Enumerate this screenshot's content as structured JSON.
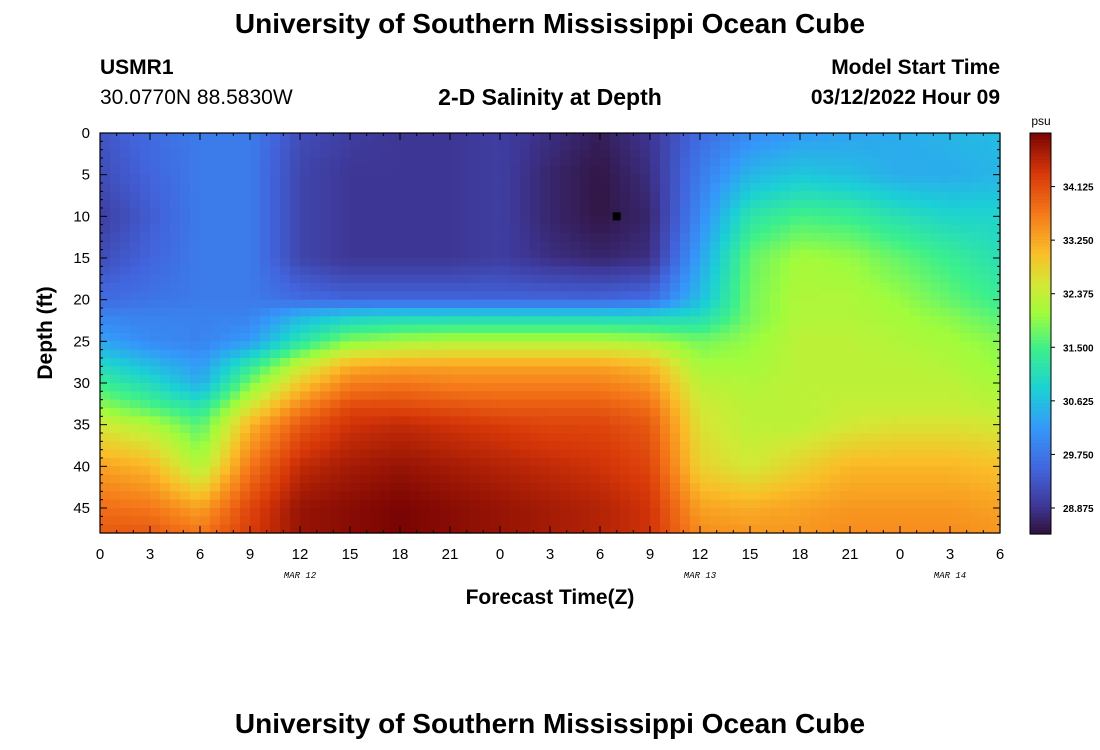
{
  "header": {
    "title": "University of Southern Mississippi Ocean Cube",
    "station": "USMR1",
    "coords": "30.0770N  88.5830W",
    "subtitle": "2-D Salinity at Depth",
    "model_start_label": "Model Start Time",
    "model_start_value": "03/12/2022 Hour 09"
  },
  "footer": {
    "title": "University of Southern Mississippi Ocean Cube"
  },
  "chart_data": {
    "type": "heatmap",
    "title": "2-D Salinity at Depth",
    "xlabel": "Forecast Time(Z)",
    "ylabel": "Depth (ft)",
    "x_unit": "forecast hours from 00Z MAR 12",
    "xlim": [
      0,
      54
    ],
    "ylim": [
      0,
      48
    ],
    "y_inverted": true,
    "x_tick_labels": [
      "0",
      "3",
      "6",
      "9",
      "12",
      "15",
      "18",
      "21",
      "0",
      "3",
      "6",
      "9",
      "12",
      "15",
      "18",
      "21",
      "0",
      "3",
      "6"
    ],
    "date_labels": [
      {
        "at_hour": 12,
        "text": "MAR 12"
      },
      {
        "at_hour": 36,
        "text": "MAR 13"
      },
      {
        "at_hour": 51,
        "text": "MAR 14"
      }
    ],
    "y_tick_labels": [
      "0",
      "5",
      "10",
      "15",
      "20",
      "25",
      "30",
      "35",
      "40",
      "45"
    ],
    "y_ticks": [
      0,
      5,
      10,
      15,
      20,
      25,
      30,
      35,
      40,
      45
    ],
    "colorbar": {
      "unit": "psu",
      "min": 28.45,
      "max": 35.0,
      "tick_labels": [
        "34.125",
        "33.250",
        "32.375",
        "31.500",
        "30.625",
        "29.750",
        "28.875"
      ],
      "tick_values": [
        34.125,
        33.25,
        32.375,
        31.5,
        30.625,
        29.75,
        28.875
      ],
      "colormap": "turbo"
    },
    "marker": {
      "x_hour": 31,
      "depth_ft": 10
    },
    "time_hours": [
      0,
      3,
      6,
      9,
      12,
      15,
      18,
      21,
      24,
      27,
      30,
      33,
      36,
      39,
      42,
      45,
      48,
      51,
      54
    ],
    "depths_ft": [
      0,
      5,
      10,
      15,
      20,
      22,
      25,
      28,
      30,
      33,
      35,
      40,
      45,
      48
    ],
    "salinity": [
      [
        29.3,
        29.6,
        29.8,
        29.8,
        29.2,
        29.0,
        28.9,
        28.9,
        29.0,
        28.8,
        28.6,
        28.9,
        29.6,
        30.0,
        30.2,
        30.3,
        30.4,
        30.5,
        30.6
      ],
      [
        29.2,
        29.5,
        29.8,
        29.8,
        29.1,
        28.9,
        28.9,
        28.9,
        29.0,
        28.7,
        28.5,
        28.8,
        29.8,
        30.5,
        30.7,
        30.6,
        30.4,
        30.4,
        30.5
      ],
      [
        29.0,
        29.4,
        29.8,
        29.8,
        29.1,
        28.9,
        28.9,
        28.9,
        29.0,
        28.7,
        28.5,
        28.7,
        30.0,
        31.2,
        31.5,
        31.4,
        31.1,
        30.9,
        30.9
      ],
      [
        29.2,
        29.5,
        29.8,
        29.8,
        29.1,
        28.9,
        28.9,
        28.9,
        29.0,
        28.8,
        28.7,
        28.8,
        30.3,
        31.7,
        32.1,
        32.0,
        31.7,
        31.4,
        31.1
      ],
      [
        29.6,
        29.7,
        29.8,
        29.8,
        29.6,
        29.5,
        29.5,
        29.5,
        29.5,
        29.5,
        29.5,
        29.6,
        30.6,
        31.8,
        32.2,
        32.2,
        32.0,
        31.7,
        31.4
      ],
      [
        29.9,
        29.9,
        29.9,
        29.9,
        30.5,
        30.8,
        30.9,
        30.9,
        30.9,
        30.9,
        30.9,
        30.9,
        31.0,
        31.8,
        32.2,
        32.2,
        32.1,
        31.9,
        31.6
      ],
      [
        30.3,
        30.0,
        29.9,
        30.2,
        31.2,
        31.9,
        32.1,
        32.2,
        32.2,
        32.2,
        32.2,
        32.1,
        31.8,
        32.0,
        32.3,
        32.3,
        32.2,
        32.1,
        31.9
      ],
      [
        31.0,
        30.6,
        30.2,
        31.3,
        32.4,
        33.2,
        33.3,
        33.3,
        33.3,
        33.3,
        33.3,
        33.1,
        32.1,
        32.1,
        32.3,
        32.3,
        32.3,
        32.2,
        32.0
      ],
      [
        31.4,
        31.0,
        30.4,
        31.8,
        32.9,
        33.6,
        33.7,
        33.6,
        33.6,
        33.6,
        33.6,
        33.4,
        32.3,
        32.2,
        32.3,
        32.3,
        32.3,
        32.3,
        32.1
      ],
      [
        32.0,
        31.6,
        31.2,
        32.6,
        33.6,
        34.2,
        34.2,
        34.1,
        34.0,
        34.0,
        34.0,
        33.8,
        32.5,
        32.3,
        32.3,
        32.4,
        32.4,
        32.4,
        32.3
      ],
      [
        32.5,
        32.2,
        31.6,
        33.1,
        34.0,
        34.4,
        34.5,
        34.4,
        34.3,
        34.2,
        34.2,
        34.0,
        32.6,
        32.3,
        32.3,
        32.5,
        32.6,
        32.6,
        32.5
      ],
      [
        33.3,
        33.1,
        32.2,
        33.7,
        34.5,
        34.7,
        34.8,
        34.7,
        34.6,
        34.5,
        34.4,
        34.2,
        32.8,
        32.5,
        32.8,
        33.1,
        33.1,
        33.1,
        33.0
      ],
      [
        33.8,
        33.7,
        33.3,
        34.2,
        34.8,
        34.9,
        35.0,
        34.9,
        34.8,
        34.7,
        34.6,
        34.4,
        33.3,
        33.2,
        33.3,
        33.4,
        33.4,
        33.4,
        33.3
      ],
      [
        34.0,
        34.0,
        33.7,
        34.3,
        34.8,
        34.9,
        35.0,
        34.9,
        34.8,
        34.7,
        34.6,
        34.4,
        33.5,
        33.4,
        33.4,
        33.5,
        33.5,
        33.5,
        33.4
      ]
    ]
  }
}
